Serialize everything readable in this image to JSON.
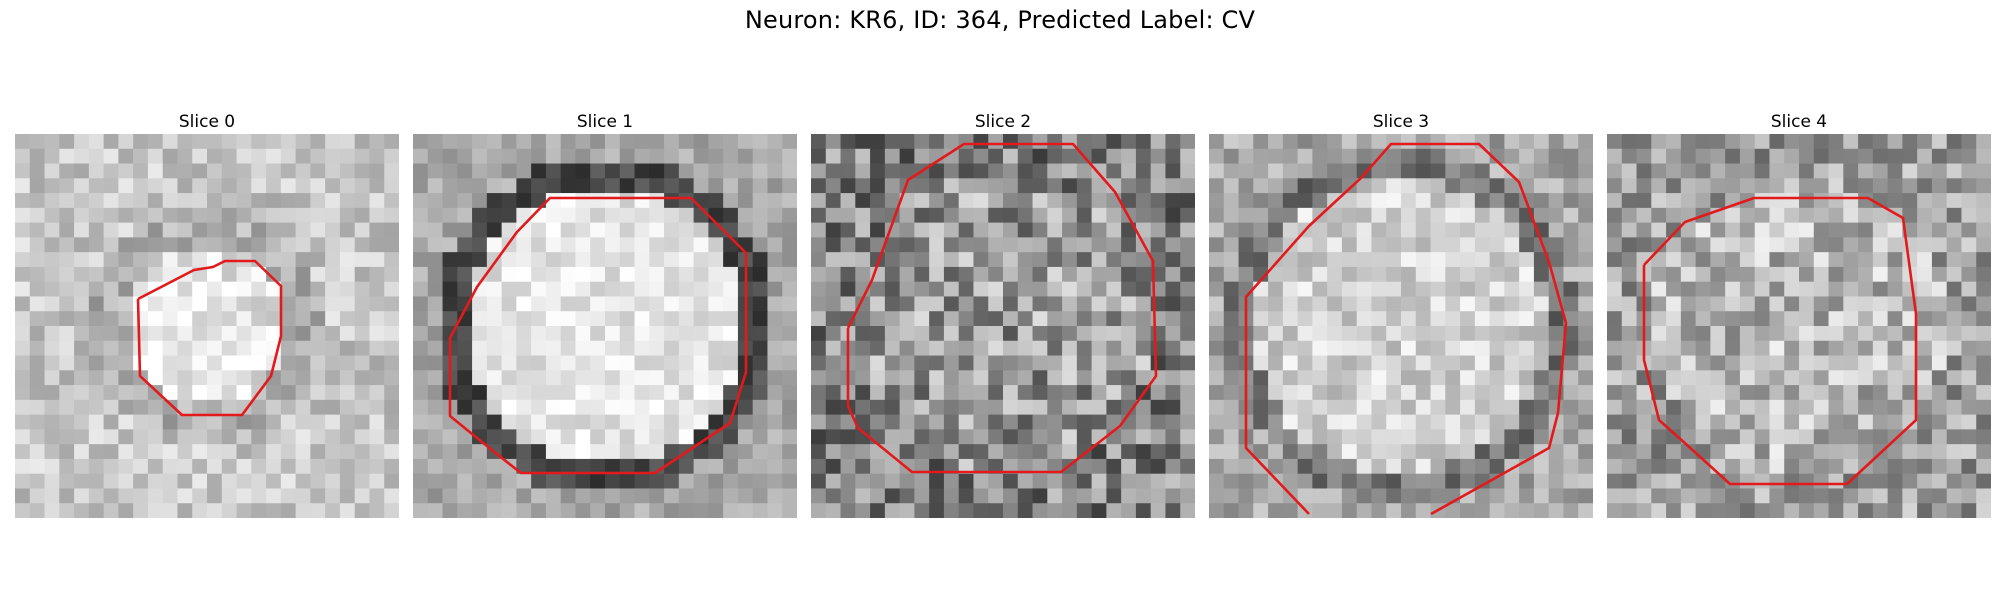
{
  "figure": {
    "title": "Neuron: KR6, ID: 364, Predicted Label: CV"
  },
  "panels": [
    {
      "label": "Slice 0",
      "seed": 11,
      "profile": "soft"
    },
    {
      "label": "Slice 1",
      "seed": 23,
      "profile": "ring"
    },
    {
      "label": "Slice 2",
      "seed": 37,
      "profile": "noisy"
    },
    {
      "label": "Slice 3",
      "seed": 41,
      "profile": "ring-soft"
    },
    {
      "label": "Slice 4",
      "seed": 53,
      "profile": "noisy-light"
    }
  ],
  "overlay": {
    "contour_color": "#e31a1c",
    "contour_description": "ROI outline",
    "grid": 26
  }
}
